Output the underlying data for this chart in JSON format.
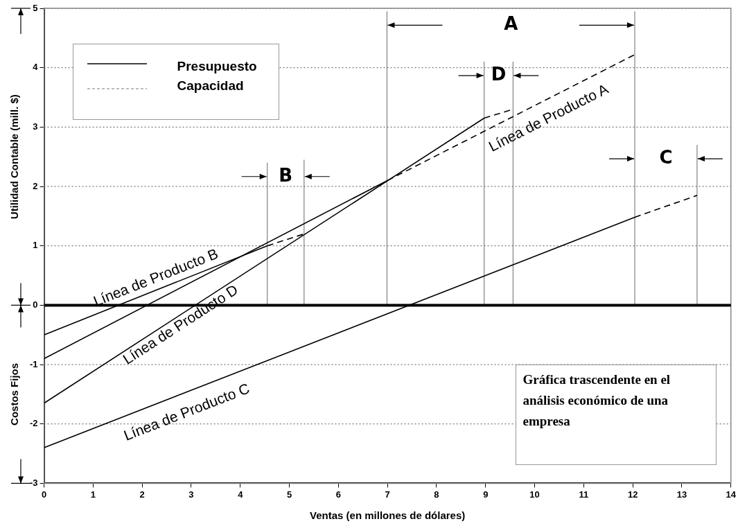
{
  "chart_data": {
    "type": "line",
    "xlabel": "Ventas (en millones de dólares)",
    "ylabel": "Utilidad Contable (mill. $)",
    "xlim": [
      0,
      14
    ],
    "xticks": [
      0,
      1,
      2,
      3,
      4,
      5,
      6,
      7,
      8,
      9,
      10,
      11,
      12,
      13,
      14
    ],
    "ylim": [
      -3,
      5
    ],
    "yticks": [
      -3,
      -2,
      -1,
      0,
      1,
      2,
      3,
      4,
      5
    ],
    "grid": "y",
    "marker": "none",
    "series": [
      {
        "color": "#000000",
        "line_style": "solid",
        "x": [
          0,
          7
        ],
        "values": [
          -0.9,
          2.1
        ]
      },
      {
        "name": "Línea de Producto A",
        "color": "#000000",
        "line_style": "dashed",
        "x": [
          7,
          12.04
        ],
        "values": [
          2.1,
          4.22
        ]
      },
      {
        "name": "Línea de Producto B",
        "color": "#000000",
        "line_style": "solid",
        "x": [
          0,
          4.55
        ],
        "values": [
          -0.5,
          1.0
        ]
      },
      {
        "color": "#000000",
        "line_style": "dashed",
        "x": [
          4.55,
          5.3
        ],
        "values": [
          1.0,
          1.2
        ]
      },
      {
        "name": "Línea de Producto D",
        "color": "#000000",
        "line_style": "solid",
        "x": [
          0,
          8.97
        ],
        "values": [
          -1.65,
          3.15
        ]
      },
      {
        "color": "#000000",
        "line_style": "dashed",
        "x": [
          8.97,
          9.56
        ],
        "values": [
          3.15,
          3.3
        ]
      },
      {
        "name": "Línea de Producto C",
        "color": "#000000",
        "line_style": "solid",
        "x": [
          0,
          12.04
        ],
        "values": [
          -2.4,
          1.48
        ]
      },
      {
        "color": "#000000",
        "line_style": "dashed",
        "x": [
          12.04,
          13.31
        ],
        "values": [
          1.48,
          1.85
        ]
      },
      {
        "color": "#808080",
        "line_style": "solid",
        "x": [
          6.99,
          6.99
        ],
        "values": [
          0,
          4.95
        ]
      },
      {
        "color": "#808080",
        "line_style": "solid",
        "x": [
          12.04,
          12.04
        ],
        "values": [
          0,
          4.95
        ]
      },
      {
        "color": "#808080",
        "line_style": "solid",
        "x": [
          13.31,
          13.31
        ],
        "values": [
          0,
          2.7
        ]
      },
      {
        "color": "#808080",
        "line_style": "solid",
        "x": [
          8.97,
          8.97
        ],
        "values": [
          0,
          4.1
        ]
      },
      {
        "color": "#808080",
        "line_style": "solid",
        "x": [
          9.56,
          9.56
        ],
        "values": [
          0,
          4.1
        ]
      },
      {
        "color": "#808080",
        "line_style": "solid",
        "x": [
          4.55,
          4.55
        ],
        "values": [
          0,
          2.4
        ]
      },
      {
        "color": "#808080",
        "line_style": "solid",
        "x": [
          5.3,
          5.3
        ],
        "values": [
          0,
          2.45
        ]
      }
    ],
    "ref_lines": [
      {
        "axis": "y",
        "value": 0,
        "color": "#000000"
      }
    ],
    "annotations": [
      "Presupuesto",
      "Capacidad",
      "Costos Fijos",
      "Gráfica trascendente en el análisis económico de una empresa",
      "A",
      "C",
      "D",
      "B"
    ]
  }
}
